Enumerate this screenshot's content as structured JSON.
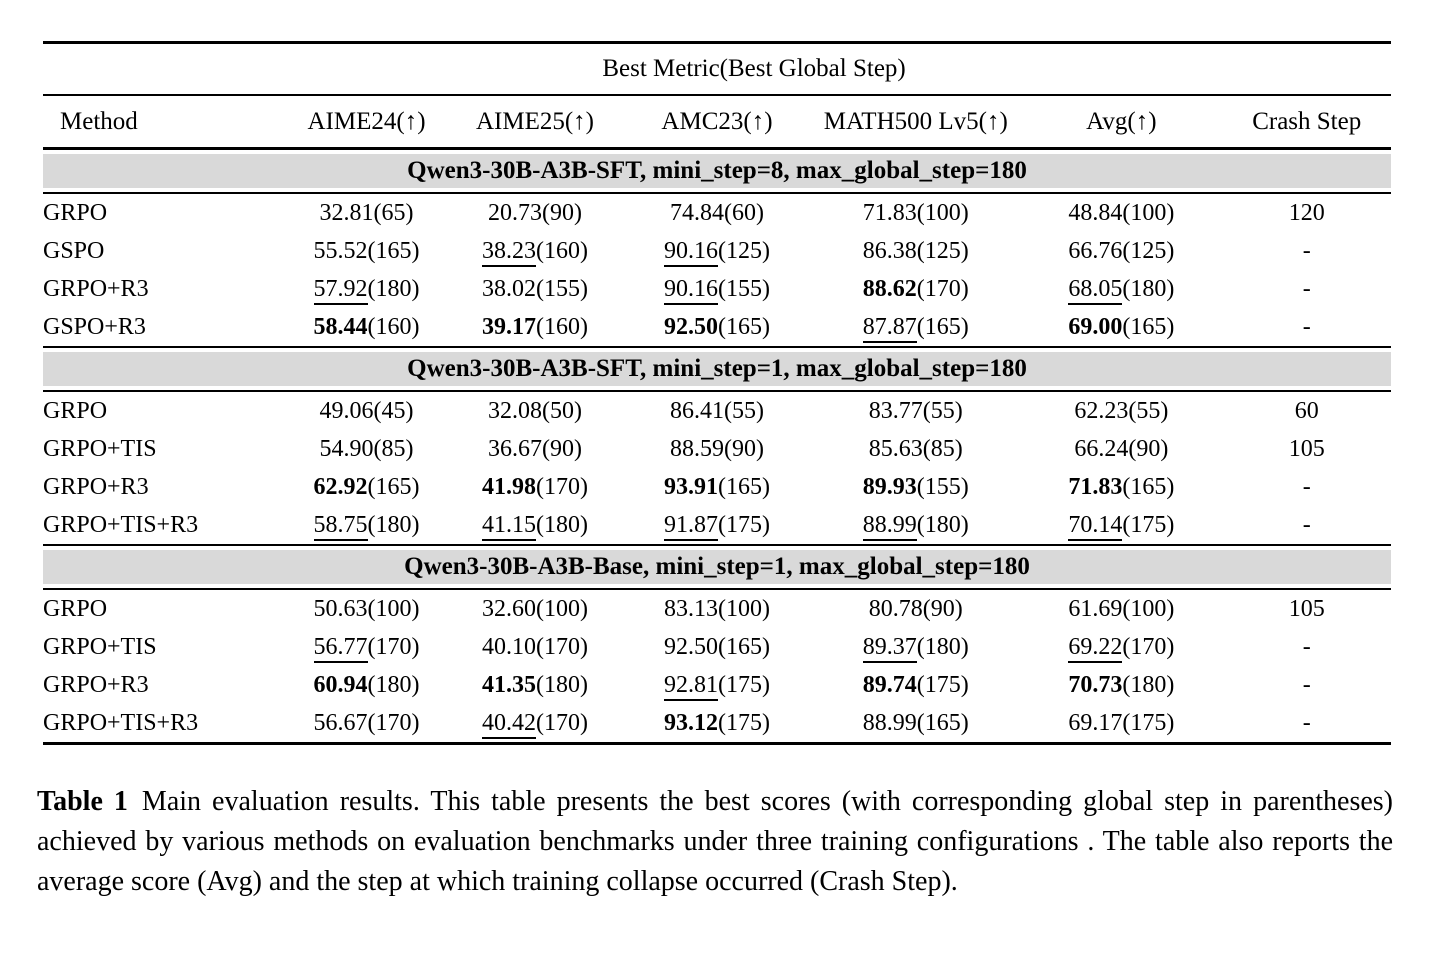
{
  "colors": {
    "background": "#ffffff",
    "section_band": "#d9d9d9",
    "rule": "#000000",
    "text": "#000000"
  },
  "table": {
    "span_header": "Best Metric(Best Global Step)",
    "columns": [
      "Method",
      "AIME24(↑)",
      "AIME25(↑)",
      "AMC23(↑)",
      "MATH500 Lv5(↑)",
      "Avg(↑)",
      "Crash Step"
    ],
    "sections": [
      {
        "title": "Qwen3-30B-A3B-SFT, mini_step=8, max_global_step=180",
        "rows": [
          {
            "method": "GRPO",
            "cells": [
              {
                "score": "32.81",
                "step": "(65)",
                "style": "plain"
              },
              {
                "score": "20.73",
                "step": "(90)",
                "style": "plain"
              },
              {
                "score": "74.84",
                "step": "(60)",
                "style": "plain"
              },
              {
                "score": "71.83",
                "step": "(100)",
                "style": "plain"
              },
              {
                "score": "48.84",
                "step": "(100)",
                "style": "plain"
              }
            ],
            "crash_step": "120"
          },
          {
            "method": "GSPO",
            "cells": [
              {
                "score": "55.52",
                "step": "(165)",
                "style": "plain"
              },
              {
                "score": "38.23",
                "step": "(160)",
                "style": "underline"
              },
              {
                "score": "90.16",
                "step": "(125)",
                "style": "underline"
              },
              {
                "score": "86.38",
                "step": "(125)",
                "style": "plain"
              },
              {
                "score": "66.76",
                "step": "(125)",
                "style": "plain"
              }
            ],
            "crash_step": "-"
          },
          {
            "method": "GRPO+R3",
            "cells": [
              {
                "score": "57.92",
                "step": "(180)",
                "style": "underline"
              },
              {
                "score": "38.02",
                "step": "(155)",
                "style": "plain"
              },
              {
                "score": "90.16",
                "step": "(155)",
                "style": "underline"
              },
              {
                "score": "88.62",
                "step": "(170)",
                "style": "bold"
              },
              {
                "score": "68.05",
                "step": "(180)",
                "style": "underline"
              }
            ],
            "crash_step": "-"
          },
          {
            "method": "GSPO+R3",
            "cells": [
              {
                "score": "58.44",
                "step": "(160)",
                "style": "bold"
              },
              {
                "score": "39.17",
                "step": "(160)",
                "style": "bold"
              },
              {
                "score": "92.50",
                "step": "(165)",
                "style": "bold"
              },
              {
                "score": "87.87",
                "step": "(165)",
                "style": "underline"
              },
              {
                "score": "69.00",
                "step": "(165)",
                "style": "bold"
              }
            ],
            "crash_step": "-"
          }
        ]
      },
      {
        "title": "Qwen3-30B-A3B-SFT, mini_step=1, max_global_step=180",
        "rows": [
          {
            "method": "GRPO",
            "cells": [
              {
                "score": "49.06",
                "step": "(45)",
                "style": "plain"
              },
              {
                "score": "32.08",
                "step": "(50)",
                "style": "plain"
              },
              {
                "score": "86.41",
                "step": "(55)",
                "style": "plain"
              },
              {
                "score": "83.77",
                "step": "(55)",
                "style": "plain"
              },
              {
                "score": "62.23",
                "step": "(55)",
                "style": "plain"
              }
            ],
            "crash_step": "60"
          },
          {
            "method": "GRPO+TIS",
            "cells": [
              {
                "score": "54.90",
                "step": "(85)",
                "style": "plain"
              },
              {
                "score": "36.67",
                "step": "(90)",
                "style": "plain"
              },
              {
                "score": "88.59",
                "step": "(90)",
                "style": "plain"
              },
              {
                "score": "85.63",
                "step": "(85)",
                "style": "plain"
              },
              {
                "score": "66.24",
                "step": "(90)",
                "style": "plain"
              }
            ],
            "crash_step": "105"
          },
          {
            "method": "GRPO+R3",
            "cells": [
              {
                "score": "62.92",
                "step": "(165)",
                "style": "bold"
              },
              {
                "score": "41.98",
                "step": "(170)",
                "style": "bold"
              },
              {
                "score": "93.91",
                "step": "(165)",
                "style": "bold"
              },
              {
                "score": "89.93",
                "step": "(155)",
                "style": "bold"
              },
              {
                "score": "71.83",
                "step": "(165)",
                "style": "bold"
              }
            ],
            "crash_step": "-"
          },
          {
            "method": "GRPO+TIS+R3",
            "cells": [
              {
                "score": "58.75",
                "step": "(180)",
                "style": "underline"
              },
              {
                "score": "41.15",
                "step": "(180)",
                "style": "underline"
              },
              {
                "score": "91.87",
                "step": "(175)",
                "style": "underline"
              },
              {
                "score": "88.99",
                "step": "(180)",
                "style": "underline"
              },
              {
                "score": "70.14",
                "step": "(175)",
                "style": "underline"
              }
            ],
            "crash_step": "-"
          }
        ]
      },
      {
        "title": "Qwen3-30B-A3B-Base, mini_step=1, max_global_step=180",
        "rows": [
          {
            "method": "GRPO",
            "cells": [
              {
                "score": "50.63",
                "step": "(100)",
                "style": "plain"
              },
              {
                "score": "32.60",
                "step": "(100)",
                "style": "plain"
              },
              {
                "score": "83.13",
                "step": "(100)",
                "style": "plain"
              },
              {
                "score": "80.78",
                "step": "(90)",
                "style": "plain"
              },
              {
                "score": "61.69",
                "step": "(100)",
                "style": "plain"
              }
            ],
            "crash_step": "105"
          },
          {
            "method": "GRPO+TIS",
            "cells": [
              {
                "score": "56.77",
                "step": "(170)",
                "style": "underline"
              },
              {
                "score": "40.10",
                "step": "(170)",
                "style": "plain"
              },
              {
                "score": "92.50",
                "step": "(165)",
                "style": "plain"
              },
              {
                "score": "89.37",
                "step": "(180)",
                "style": "underline"
              },
              {
                "score": "69.22",
                "step": "(170)",
                "style": "underline"
              }
            ],
            "crash_step": "-"
          },
          {
            "method": "GRPO+R3",
            "cells": [
              {
                "score": "60.94",
                "step": "(180)",
                "style": "bold"
              },
              {
                "score": "41.35",
                "step": "(180)",
                "style": "bold"
              },
              {
                "score": "92.81",
                "step": "(175)",
                "style": "underline"
              },
              {
                "score": "89.74",
                "step": "(175)",
                "style": "bold"
              },
              {
                "score": "70.73",
                "step": "(180)",
                "style": "bold"
              }
            ],
            "crash_step": "-"
          },
          {
            "method": "GRPO+TIS+R3",
            "cells": [
              {
                "score": "56.67",
                "step": "(170)",
                "style": "plain"
              },
              {
                "score": "40.42",
                "step": "(170)",
                "style": "underline"
              },
              {
                "score": "93.12",
                "step": "(175)",
                "style": "bold"
              },
              {
                "score": "88.99",
                "step": "(165)",
                "style": "plain"
              },
              {
                "score": "69.17",
                "step": "(175)",
                "style": "plain"
              }
            ],
            "crash_step": "-"
          }
        ]
      }
    ]
  },
  "caption": {
    "label": "Table 1",
    "text": "Main evaluation results. This table presents the best scores (with corresponding global step in parentheses) achieved by various methods on evaluation benchmarks under three training configurations . The table also reports the average score (Avg) and the step at which training collapse occurred (Crash Step)."
  }
}
